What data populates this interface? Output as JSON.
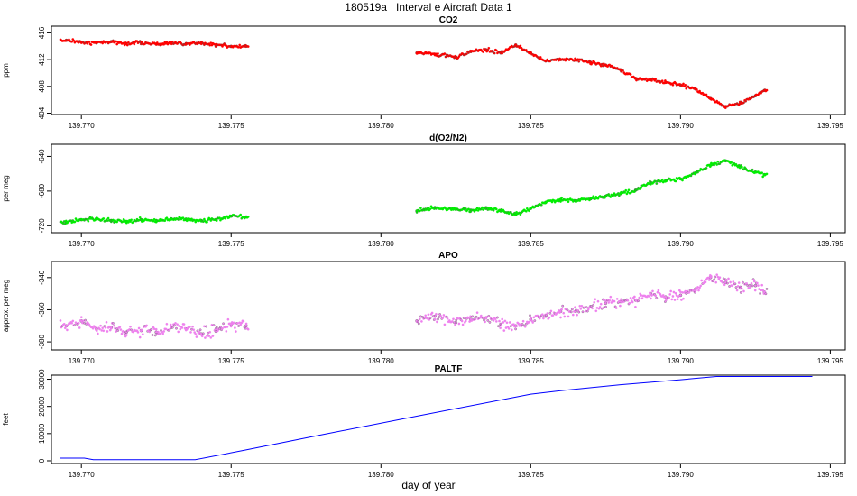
{
  "figure": {
    "title": "180519a   Interval e Aircraft Data 1",
    "xlabel": "day of year"
  },
  "chart_data": [
    {
      "type": "scatter",
      "title": "CO2",
      "ylabel": "ppm",
      "color": "#ff0000",
      "xlim": [
        139.769,
        139.7955
      ],
      "ylim": [
        403.8,
        417
      ],
      "xticks": [
        "139.770",
        "139.775",
        "139.780",
        "139.785",
        "139.790",
        "139.795"
      ],
      "yticks": [
        "404",
        "408",
        "412",
        "416"
      ],
      "series": [
        {
          "name": "",
          "x": [
            139.7695,
            139.77,
            139.7705,
            139.771,
            139.7715,
            139.772,
            139.7725,
            139.773,
            139.7735,
            139.774,
            139.7745,
            139.775,
            139.7755,
            139.7812,
            139.7818,
            139.7825,
            139.783,
            139.7835,
            139.784,
            139.7845,
            139.785,
            139.7855,
            139.786,
            139.7865,
            139.787,
            139.7875,
            139.788,
            139.7885,
            139.789,
            139.7895,
            139.79,
            139.7905,
            139.791,
            139.7915,
            139.792,
            139.7925,
            139.7928
          ],
          "y": [
            414.9,
            414.6,
            414.5,
            414.7,
            414.4,
            414.6,
            414.3,
            414.5,
            414.4,
            414.5,
            414.2,
            414.0,
            414.0,
            413.0,
            412.8,
            412.4,
            413.2,
            413.5,
            413.0,
            414.2,
            413.0,
            411.8,
            412.0,
            412.0,
            411.6,
            411.2,
            410.5,
            409.2,
            409.0,
            408.6,
            408.2,
            407.6,
            406.2,
            405.0,
            405.5,
            406.6,
            407.4
          ]
        }
      ]
    },
    {
      "type": "scatter",
      "title": "d(O2/N2)",
      "ylabel": "per meg",
      "color": "#00ee00",
      "xlim": [
        139.769,
        139.7955
      ],
      "ylim": [
        -728,
        -626
      ],
      "xticks": [
        "139.770",
        "139.775",
        "139.780",
        "139.785",
        "139.790",
        "139.795"
      ],
      "yticks": [
        "-720",
        "-680",
        "-640"
      ],
      "series": [
        {
          "name": "",
          "x": [
            139.7695,
            139.77,
            139.7705,
            139.771,
            139.7715,
            139.772,
            139.7725,
            139.773,
            139.7735,
            139.774,
            139.7745,
            139.775,
            139.7755,
            139.7812,
            139.7818,
            139.7825,
            139.783,
            139.7835,
            139.784,
            139.7845,
            139.785,
            139.7855,
            139.786,
            139.7865,
            139.787,
            139.7875,
            139.788,
            139.7885,
            139.789,
            139.7895,
            139.79,
            139.7905,
            139.791,
            139.7915,
            139.792,
            139.7925,
            139.7928
          ],
          "y": [
            -716,
            -713,
            -712,
            -714,
            -715,
            -713,
            -714,
            -712,
            -713,
            -714,
            -713,
            -709,
            -710,
            -703,
            -699,
            -701,
            -702,
            -700,
            -703,
            -707,
            -700,
            -693,
            -690,
            -691,
            -689,
            -686,
            -683,
            -679,
            -670,
            -668,
            -666,
            -659,
            -650,
            -645,
            -652,
            -658,
            -661
          ]
        }
      ]
    },
    {
      "type": "scatter",
      "title": "APO",
      "ylabel": "approx. per meg",
      "color": "#ee82ee",
      "xlim": [
        139.769,
        139.7955
      ],
      "ylim": [
        -385,
        -330
      ],
      "xticks": [
        "139.770",
        "139.775",
        "139.780",
        "139.785",
        "139.790",
        "139.795"
      ],
      "yticks": [
        "-380",
        "-360",
        "-340"
      ],
      "series": [
        {
          "name": "",
          "x": [
            139.7695,
            139.77,
            139.7705,
            139.771,
            139.7715,
            139.772,
            139.7725,
            139.773,
            139.7735,
            139.774,
            139.7745,
            139.775,
            139.7755,
            139.7812,
            139.7818,
            139.7825,
            139.783,
            139.7835,
            139.784,
            139.7845,
            139.785,
            139.7855,
            139.786,
            139.7865,
            139.787,
            139.7875,
            139.788,
            139.7885,
            139.789,
            139.7895,
            139.79,
            139.7905,
            139.791,
            139.7915,
            139.792,
            139.7925,
            139.7928
          ],
          "y": [
            -370,
            -367,
            -372,
            -371,
            -374,
            -373,
            -374,
            -371,
            -372,
            -375,
            -372,
            -369,
            -370,
            -367,
            -364,
            -368,
            -366,
            -365,
            -369,
            -370,
            -366,
            -364,
            -361,
            -361,
            -358,
            -356,
            -355,
            -354,
            -350,
            -352,
            -351,
            -347,
            -340,
            -343,
            -346,
            -345,
            -349
          ]
        }
      ]
    },
    {
      "type": "line",
      "title": "PALTF",
      "ylabel": "feet",
      "color": "#0000ff",
      "xlim": [
        139.769,
        139.7955
      ],
      "ylim": [
        -1000,
        31500
      ],
      "xticks": [
        "139.770",
        "139.775",
        "139.780",
        "139.785",
        "139.790",
        "139.795"
      ],
      "yticks": [
        "0",
        "10000",
        "20000",
        "30000"
      ],
      "series": [
        {
          "name": "",
          "x": [
            139.7693,
            139.7701,
            139.7704,
            139.7738,
            139.7755,
            139.778,
            139.781,
            139.785,
            139.786,
            139.788,
            139.79,
            139.7912,
            139.7944
          ],
          "y": [
            1000,
            1000,
            400,
            400,
            4000,
            9500,
            16000,
            24500,
            25800,
            28000,
            29800,
            31000,
            31000
          ]
        }
      ]
    }
  ]
}
